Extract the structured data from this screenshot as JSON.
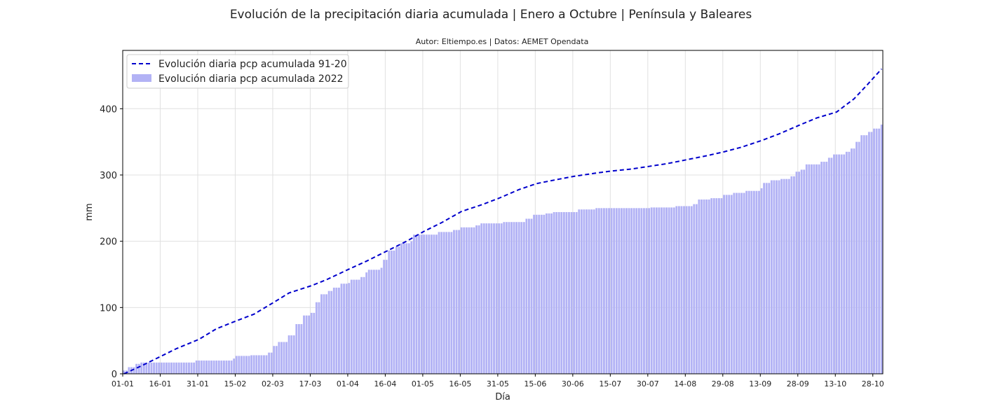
{
  "chart_data": {
    "type": "bar",
    "title": "Evolución de la precipitación diaria acumulada | Enero a Octubre | Península y Baleares",
    "subtitle": "Autor: Eltiempo.es | Datos: AEMET Opendata",
    "xlabel": "Día",
    "ylabel": "mm",
    "ylim": [
      0,
      488
    ],
    "yticks": [
      0,
      100,
      200,
      300,
      400
    ],
    "grid": true,
    "legend_position": "upper left",
    "x_range_days": [
      1,
      304
    ],
    "x_ticks": [
      {
        "label": "01-01",
        "day": 1
      },
      {
        "label": "16-01",
        "day": 16
      },
      {
        "label": "31-01",
        "day": 31
      },
      {
        "label": "15-02",
        "day": 46
      },
      {
        "label": "02-03",
        "day": 61
      },
      {
        "label": "17-03",
        "day": 76
      },
      {
        "label": "01-04",
        "day": 91
      },
      {
        "label": "16-04",
        "day": 106
      },
      {
        "label": "01-05",
        "day": 121
      },
      {
        "label": "16-05",
        "day": 136
      },
      {
        "label": "31-05",
        "day": 151
      },
      {
        "label": "15-06",
        "day": 166
      },
      {
        "label": "30-06",
        "day": 181
      },
      {
        "label": "15-07",
        "day": 196
      },
      {
        "label": "30-07",
        "day": 211
      },
      {
        "label": "14-08",
        "day": 226
      },
      {
        "label": "29-08",
        "day": 241
      },
      {
        "label": "13-09",
        "day": 256
      },
      {
        "label": "28-09",
        "day": 271
      },
      {
        "label": "13-10",
        "day": 286
      },
      {
        "label": "28-10",
        "day": 301
      }
    ],
    "series": [
      {
        "name": "Evolución diaria pcp acumulada 91-20",
        "kind": "line",
        "style": "dashed",
        "color": "#0000cc",
        "points": [
          [
            1,
            0
          ],
          [
            8,
            12
          ],
          [
            15,
            25
          ],
          [
            22,
            38
          ],
          [
            31,
            52
          ],
          [
            38,
            68
          ],
          [
            46,
            80
          ],
          [
            53,
            90
          ],
          [
            61,
            108
          ],
          [
            67,
            122
          ],
          [
            76,
            133
          ],
          [
            82,
            142
          ],
          [
            91,
            158
          ],
          [
            98,
            170
          ],
          [
            106,
            185
          ],
          [
            114,
            200
          ],
          [
            121,
            215
          ],
          [
            128,
            228
          ],
          [
            136,
            245
          ],
          [
            144,
            255
          ],
          [
            151,
            265
          ],
          [
            159,
            278
          ],
          [
            166,
            287
          ],
          [
            174,
            293
          ],
          [
            181,
            298
          ],
          [
            190,
            303
          ],
          [
            196,
            306
          ],
          [
            204,
            309
          ],
          [
            211,
            313
          ],
          [
            218,
            317
          ],
          [
            226,
            323
          ],
          [
            234,
            329
          ],
          [
            241,
            335
          ],
          [
            248,
            342
          ],
          [
            256,
            352
          ],
          [
            263,
            362
          ],
          [
            271,
            375
          ],
          [
            278,
            386
          ],
          [
            286,
            395
          ],
          [
            293,
            415
          ],
          [
            298,
            435
          ],
          [
            304,
            460
          ]
        ]
      },
      {
        "name": "Evolución diaria pcp acumulada 2022",
        "kind": "bar",
        "color": "#b2b2f5",
        "points": [
          [
            1,
            5
          ],
          [
            3,
            10
          ],
          [
            6,
            15
          ],
          [
            8,
            17
          ],
          [
            30,
            20
          ],
          [
            45,
            23
          ],
          [
            46,
            27
          ],
          [
            52,
            28
          ],
          [
            59,
            32
          ],
          [
            61,
            42
          ],
          [
            63,
            48
          ],
          [
            67,
            58
          ],
          [
            70,
            75
          ],
          [
            73,
            88
          ],
          [
            76,
            92
          ],
          [
            78,
            108
          ],
          [
            80,
            120
          ],
          [
            83,
            125
          ],
          [
            85,
            130
          ],
          [
            88,
            136
          ],
          [
            91,
            137
          ],
          [
            92,
            142
          ],
          [
            96,
            146
          ],
          [
            98,
            153
          ],
          [
            99,
            157
          ],
          [
            104,
            160
          ],
          [
            105,
            172
          ],
          [
            107,
            186
          ],
          [
            110,
            192
          ],
          [
            112,
            197
          ],
          [
            116,
            200
          ],
          [
            117,
            210
          ],
          [
            127,
            214
          ],
          [
            133,
            217
          ],
          [
            136,
            221
          ],
          [
            142,
            224
          ],
          [
            144,
            227
          ],
          [
            153,
            229
          ],
          [
            162,
            234
          ],
          [
            165,
            240
          ],
          [
            170,
            242
          ],
          [
            173,
            244
          ],
          [
            183,
            248
          ],
          [
            190,
            250
          ],
          [
            212,
            251
          ],
          [
            222,
            253
          ],
          [
            229,
            256
          ],
          [
            231,
            263
          ],
          [
            236,
            265
          ],
          [
            241,
            270
          ],
          [
            245,
            273
          ],
          [
            250,
            276
          ],
          [
            256,
            280
          ],
          [
            257,
            288
          ],
          [
            260,
            292
          ],
          [
            264,
            294
          ],
          [
            268,
            298
          ],
          [
            270,
            305
          ],
          [
            272,
            308
          ],
          [
            274,
            316
          ],
          [
            280,
            320
          ],
          [
            283,
            326
          ],
          [
            285,
            331
          ],
          [
            290,
            335
          ],
          [
            292,
            340
          ],
          [
            294,
            350
          ],
          [
            296,
            360
          ],
          [
            299,
            365
          ],
          [
            301,
            370
          ],
          [
            304,
            376
          ]
        ]
      }
    ]
  }
}
